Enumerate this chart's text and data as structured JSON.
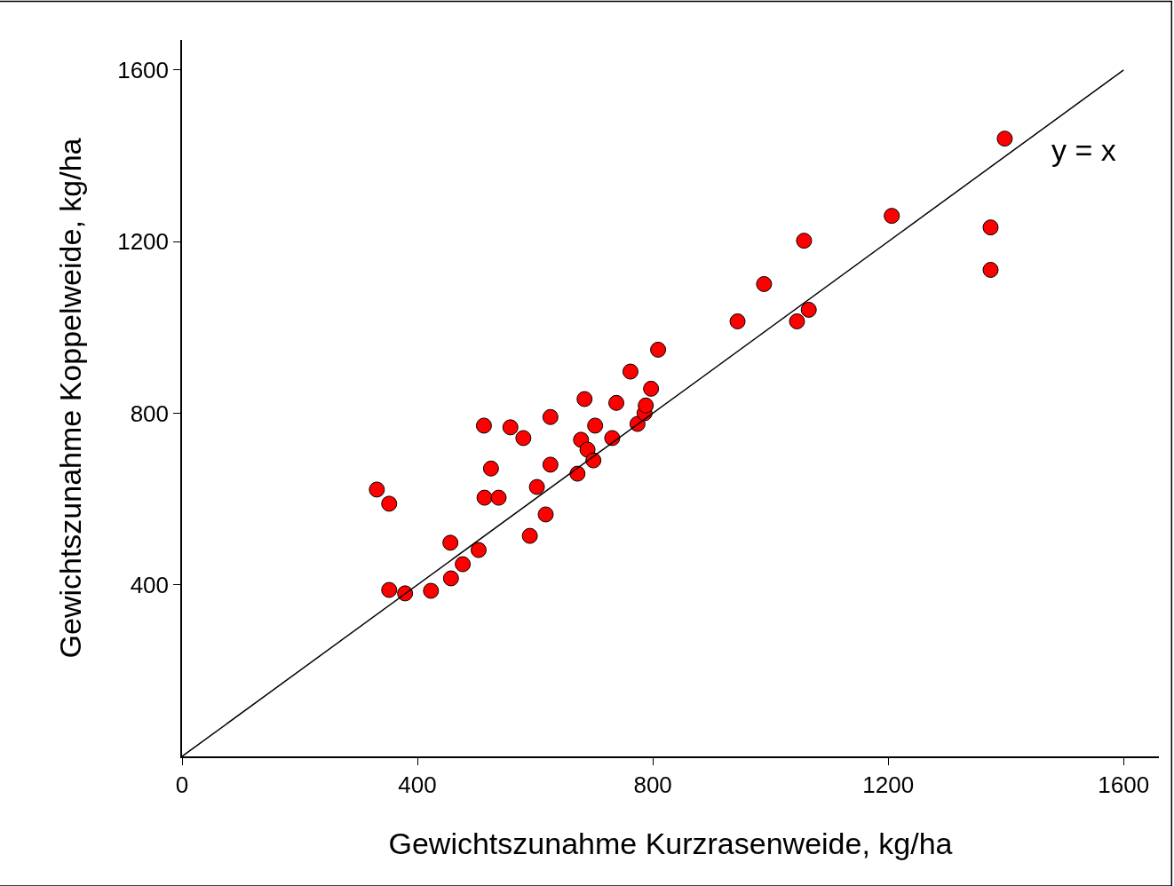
{
  "chart_data": {
    "type": "scatter",
    "xlabel": "Gewichtszunahme Kurzrasenweide, kg/ha",
    "ylabel": "Gewichtszunahme Koppelweide, kg/ha",
    "xlim": [
      0,
      1660
    ],
    "ylim": [
      0,
      1670
    ],
    "xticks": [
      0,
      400,
      800,
      1200,
      1600
    ],
    "yticks": [
      400,
      800,
      1200,
      1600
    ],
    "marker": "circle",
    "annotations": [
      "y = x"
    ],
    "series": [
      {
        "color": "#ff0000",
        "x": [
          331,
          352,
          352,
          379,
          423,
          456,
          457,
          477,
          504,
          513,
          514,
          525,
          538,
          558,
          580,
          591,
          603,
          618,
          626,
          626,
          672,
          678,
          684,
          689,
          699,
          702,
          731,
          738,
          762,
          774,
          786,
          788,
          797,
          809,
          944,
          989,
          1045,
          1057,
          1065,
          1206,
          1374,
          1374,
          1398
        ],
        "values": [
          622,
          589,
          388,
          380,
          386,
          498,
          415,
          448,
          481,
          771,
          603,
          671,
          603,
          767,
          742,
          514,
          628,
          564,
          791,
          680,
          659,
          738,
          833,
          715,
          690,
          771,
          742,
          824,
          897,
          775,
          800,
          818,
          857,
          948,
          1014,
          1101,
          1014,
          1202,
          1041,
          1260,
          1233,
          1134,
          1440
        ]
      },
      {
        "type": "line",
        "color": "#000000",
        "line_style": "solid",
        "marker": "none",
        "x": [
          0,
          1600
        ],
        "values": [
          0,
          1600
        ]
      }
    ]
  }
}
